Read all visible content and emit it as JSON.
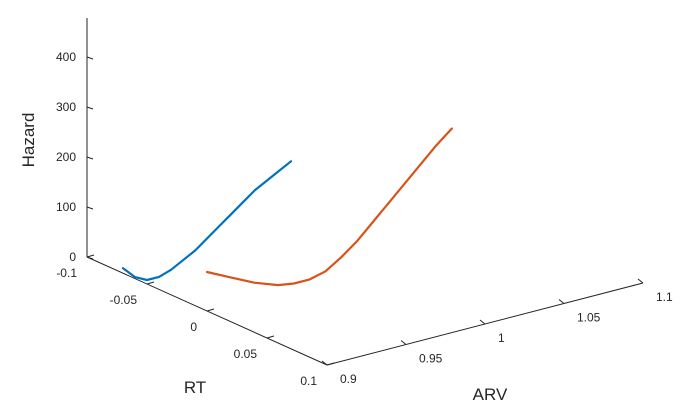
{
  "chart_data": {
    "type": "line",
    "projection": "3d",
    "axes": {
      "x": {
        "label": "ARV",
        "range": [
          0.9,
          1.1
        ],
        "ticks": [
          "0.9",
          "0.95",
          "1",
          "1.05",
          "1.1"
        ]
      },
      "y": {
        "label": "RT",
        "range": [
          -0.1,
          0.1
        ],
        "ticks": [
          "-0.1",
          "-0.05",
          "0",
          "0.05",
          "0.1"
        ]
      },
      "z": {
        "label": "Hazard",
        "range": [
          0,
          450
        ],
        "ticks": [
          "0",
          "100",
          "200",
          "300",
          "400"
        ]
      }
    },
    "grid": false,
    "legend": "none",
    "series": [
      {
        "color": "#0072BD",
        "arv": 0.9,
        "rt": [
          -0.07,
          -0.06,
          -0.05,
          -0.04,
          -0.03,
          -0.02,
          -0.01,
          0.0,
          0.01,
          0.02,
          0.03,
          0.04,
          0.05,
          0.06,
          0.07
        ],
        "hazard": [
          10,
          3,
          8,
          25,
          50,
          80,
          110,
          145,
          180,
          215,
          250,
          285,
          315,
          345,
          375
        ]
      },
      {
        "color": "#D95319",
        "rt": 0.0,
        "arv": [
          0.9,
          0.915,
          0.93,
          0.945,
          0.955,
          0.965,
          0.975,
          0.985,
          0.995,
          1.005,
          1.015,
          1.025,
          1.035,
          1.045,
          1.055
        ],
        "hazard": [
          78,
          55,
          32,
          15,
          10,
          10,
          18,
          38,
          62,
          92,
          122,
          152,
          182,
          212,
          238
        ]
      }
    ]
  }
}
